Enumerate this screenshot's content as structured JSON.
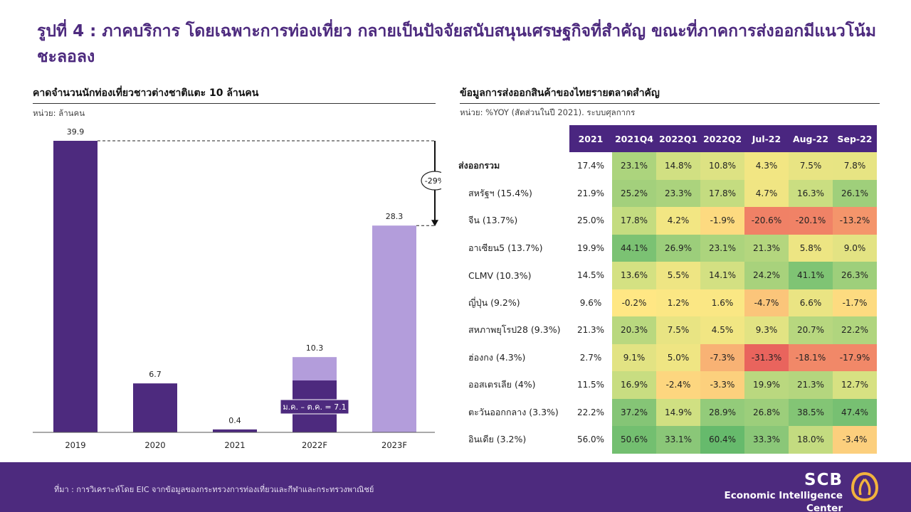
{
  "title": "รูปที่ 4 : ภาคบริการ โดยเฉพาะการท่องเที่ยว กลายเป็นปัจจัยสนับสนุนเศรษฐกิจที่สำคัญ ขณะที่ภาคการส่งออกมีแนวโน้มชะลอลง",
  "left_panel": {
    "title": "คาดจำนวนนักท่องเที่ยวชาวต่างชาติแตะ 10 ล้านคน",
    "unit": "หน่วย: ล้านคน"
  },
  "right_panel": {
    "title": "ข้อมูลการส่งออกสินค้าของไทยรายตลาดสำคัญ",
    "unit": "หน่วย: %YOY (สัดส่วนในปี 2021). ระบบศุลกากร"
  },
  "chart_data": [
    {
      "type": "bar",
      "title": "คาดจำนวนนักท่องเที่ยวชาวต่างชาติแตะ 10 ล้านคน",
      "unit": "หน่วย: ล้านคน",
      "categories": [
        "2019",
        "2020",
        "2021",
        "2022F",
        "2023F"
      ],
      "values": [
        39.9,
        6.7,
        0.4,
        10.3,
        28.3
      ],
      "stacked_part": {
        "category": "2022F",
        "value": 7.1,
        "label": "ม.ค. – ต.ค. = 7.1"
      },
      "annotation": {
        "label": "-29%",
        "from": "2019",
        "to": "2023F"
      },
      "colors": {
        "actual": "#4d2a7e",
        "forecast": "#b39ddb"
      },
      "ylim": [
        0,
        40
      ]
    },
    {
      "type": "heatmap",
      "title": "ข้อมูลการส่งออกสินค้าของไทยรายตลาดสำคัญ",
      "unit": "หน่วย: %YOY (สัดส่วนในปี 2021). ระบบศุลกากร",
      "columns": [
        "2021",
        "2021Q4",
        "2022Q1",
        "2022Q2",
        "Jul-22",
        "Aug-22",
        "Sep-22"
      ],
      "rows": [
        {
          "label": "ส่งออกรวม",
          "bold": true,
          "v2021": "17.4%",
          "cells": [
            "23.1%",
            "14.8%",
            "10.8%",
            "4.3%",
            "7.5%",
            "7.8%"
          ],
          "values": [
            23.1,
            14.8,
            10.8,
            4.3,
            7.5,
            7.8
          ]
        },
        {
          "label": "สหรัฐฯ (15.4%)",
          "v2021": "21.9%",
          "cells": [
            "25.2%",
            "23.3%",
            "17.8%",
            "4.7%",
            "16.3%",
            "26.1%"
          ],
          "values": [
            25.2,
            23.3,
            17.8,
            4.7,
            16.3,
            26.1
          ]
        },
        {
          "label": "จีน (13.7%)",
          "v2021": "25.0%",
          "cells": [
            "17.8%",
            "4.2%",
            "-1.9%",
            "-20.6%",
            "-20.1%",
            "-13.2%"
          ],
          "values": [
            17.8,
            4.2,
            -1.9,
            -20.6,
            -20.1,
            -13.2
          ]
        },
        {
          "label": "อาเซียน5 (13.7%)",
          "v2021": "19.9%",
          "cells": [
            "44.1%",
            "26.9%",
            "23.1%",
            "21.3%",
            "5.8%",
            "9.0%"
          ],
          "values": [
            44.1,
            26.9,
            23.1,
            21.3,
            5.8,
            9.0
          ]
        },
        {
          "label": "CLMV (10.3%)",
          "v2021": "14.5%",
          "cells": [
            "13.6%",
            "5.5%",
            "14.1%",
            "24.2%",
            "41.1%",
            "26.3%"
          ],
          "values": [
            13.6,
            5.5,
            14.1,
            24.2,
            41.1,
            26.3
          ]
        },
        {
          "label": "ญี่ปุ่น (9.2%)",
          "v2021": "9.6%",
          "cells": [
            "-0.2%",
            "1.2%",
            "1.6%",
            "-4.7%",
            "6.6%",
            "-1.7%"
          ],
          "values": [
            -0.2,
            1.2,
            1.6,
            -4.7,
            6.6,
            -1.7
          ]
        },
        {
          "label": "สหภาพยุโรป28 (9.3%)",
          "v2021": "21.3%",
          "cells": [
            "20.3%",
            "7.5%",
            "4.5%",
            "9.3%",
            "20.7%",
            "22.2%"
          ],
          "values": [
            20.3,
            7.5,
            4.5,
            9.3,
            20.7,
            22.2
          ]
        },
        {
          "label": "ฮ่องกง (4.3%)",
          "v2021": "2.7%",
          "cells": [
            "9.1%",
            "5.0%",
            "-7.3%",
            "-31.3%",
            "-18.1%",
            "-17.9%"
          ],
          "values": [
            9.1,
            5.0,
            -7.3,
            -31.3,
            -18.1,
            -17.9
          ]
        },
        {
          "label": "ออสเตรเลีย (4%)",
          "v2021": "11.5%",
          "cells": [
            "16.9%",
            "-2.4%",
            "-3.3%",
            "19.9%",
            "21.3%",
            "12.7%"
          ],
          "values": [
            16.9,
            -2.4,
            -3.3,
            19.9,
            21.3,
            12.7
          ]
        },
        {
          "label": "ตะวันออกกลาง (3.3%)",
          "v2021": "22.2%",
          "cells": [
            "37.2%",
            "14.9%",
            "28.9%",
            "26.8%",
            "38.5%",
            "47.4%"
          ],
          "values": [
            37.2,
            14.9,
            28.9,
            26.8,
            38.5,
            47.4
          ]
        },
        {
          "label": "อินเดีย (3.2%)",
          "v2021": "56.0%",
          "cells": [
            "50.6%",
            "33.1%",
            "60.4%",
            "33.3%",
            "18.0%",
            "-3.4%"
          ],
          "values": [
            50.6,
            33.1,
            60.4,
            33.3,
            18.0,
            -3.4
          ]
        }
      ]
    }
  ],
  "footer": {
    "source": "ที่มา : การวิเคราะห์โดย EIC จากข้อมูลของกระทรวงการท่องเที่ยวและกีฬาและกระทรวงพาณิชย์",
    "brand_name": "SCB",
    "brand_sub": "Economic Intelligence Center",
    "background": "#4d2a7e",
    "logo_color": "#f2b33d"
  }
}
